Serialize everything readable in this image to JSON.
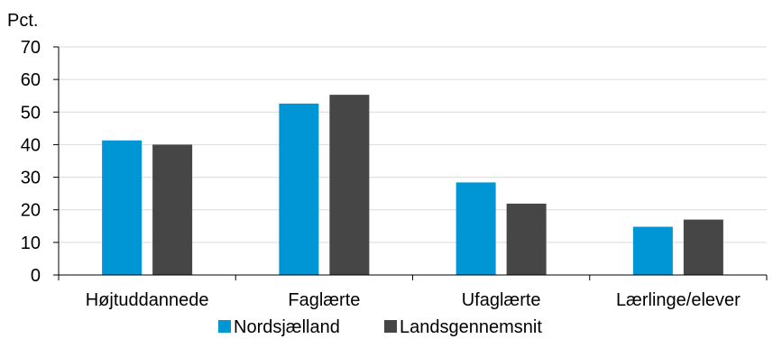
{
  "chart_data": {
    "type": "bar",
    "title": "",
    "unit_label": "Pct.",
    "xlabel": "",
    "ylabel": "Pct.",
    "ylim": [
      0,
      70
    ],
    "yticks": [
      0,
      10,
      20,
      30,
      40,
      50,
      60,
      70
    ],
    "grid": true,
    "legend_position": "bottom",
    "categories": [
      "Højtuddannede",
      "Faglærte",
      "Ufaglærte",
      "Lærlinge/elever"
    ],
    "series": [
      {
        "name": "Nordsjælland",
        "color": "#0096d6",
        "values": [
          41.3,
          52.6,
          28.4,
          14.8
        ]
      },
      {
        "name": "Landsgennemsnit",
        "color": "#464646",
        "values": [
          40.0,
          55.3,
          21.9,
          17.0
        ]
      }
    ]
  }
}
